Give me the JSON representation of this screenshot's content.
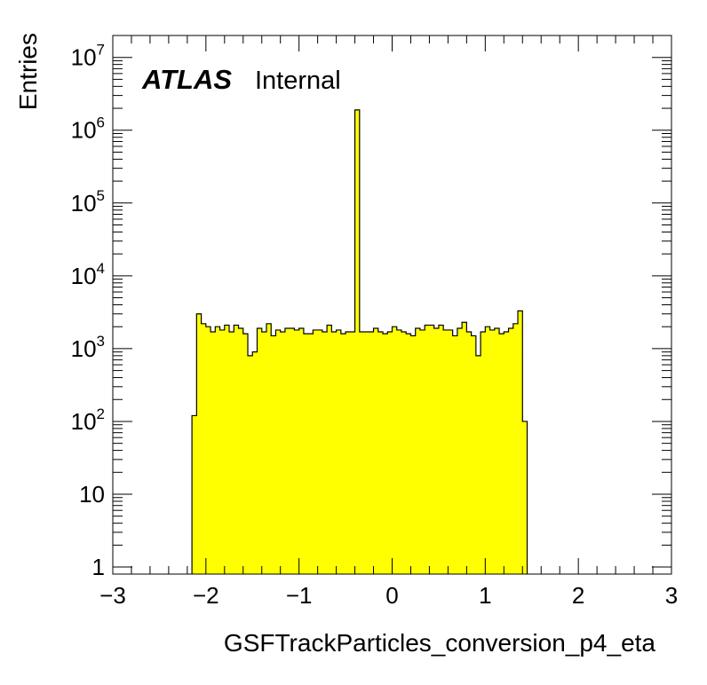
{
  "chart_data": {
    "type": "histogram",
    "title": "",
    "xlabel": "GSFTrackParticles_conversion_p4_eta",
    "ylabel": "Entries",
    "xlim": [
      -3,
      3
    ],
    "ylim": [
      0.8,
      20000000
    ],
    "yscale": "log",
    "grid": false,
    "fill_color": "#ffff00",
    "x_ticks": [
      {
        "value": -3,
        "label": "−3"
      },
      {
        "value": -2,
        "label": "−2"
      },
      {
        "value": -1,
        "label": "−1"
      },
      {
        "value": 0,
        "label": "0"
      },
      {
        "value": 1,
        "label": "1"
      },
      {
        "value": 2,
        "label": "2"
      },
      {
        "value": 3,
        "label": "3"
      }
    ],
    "y_ticks": [
      {
        "value": 1,
        "base": "1",
        "exp": ""
      },
      {
        "value": 10,
        "base": "10",
        "exp": ""
      },
      {
        "value": 100,
        "base": "10",
        "exp": "2"
      },
      {
        "value": 1000,
        "base": "10",
        "exp": "3"
      },
      {
        "value": 10000,
        "base": "10",
        "exp": "4"
      },
      {
        "value": 100000,
        "base": "10",
        "exp": "5"
      },
      {
        "value": 1000000,
        "base": "10",
        "exp": "6"
      },
      {
        "value": 10000000,
        "base": "10",
        "exp": "7"
      }
    ],
    "bins": {
      "start": -2.15,
      "width": 0.05,
      "values": [
        120,
        3000,
        2200,
        2000,
        1700,
        2000,
        1800,
        2100,
        1700,
        2100,
        1900,
        1600,
        800,
        900,
        1900,
        1700,
        2200,
        1500,
        1800,
        1700,
        1900,
        1900,
        1800,
        1900,
        1600,
        1600,
        1800,
        1800,
        1700,
        2100,
        1700,
        1800,
        1600,
        1700,
        1700,
        1900000,
        1700,
        1700,
        1700,
        1900,
        1700,
        1600,
        1700,
        2000,
        1800,
        1700,
        1600,
        1500,
        1900,
        1800,
        2100,
        2100,
        1900,
        2100,
        1800,
        1800,
        1500,
        1900,
        2300,
        1700,
        1500,
        800,
        1700,
        2000,
        1800,
        1900,
        1600,
        1700,
        1900,
        2200,
        3300,
        100
      ]
    }
  },
  "annotation": {
    "experiment": "ATLAS",
    "status": "Internal"
  }
}
